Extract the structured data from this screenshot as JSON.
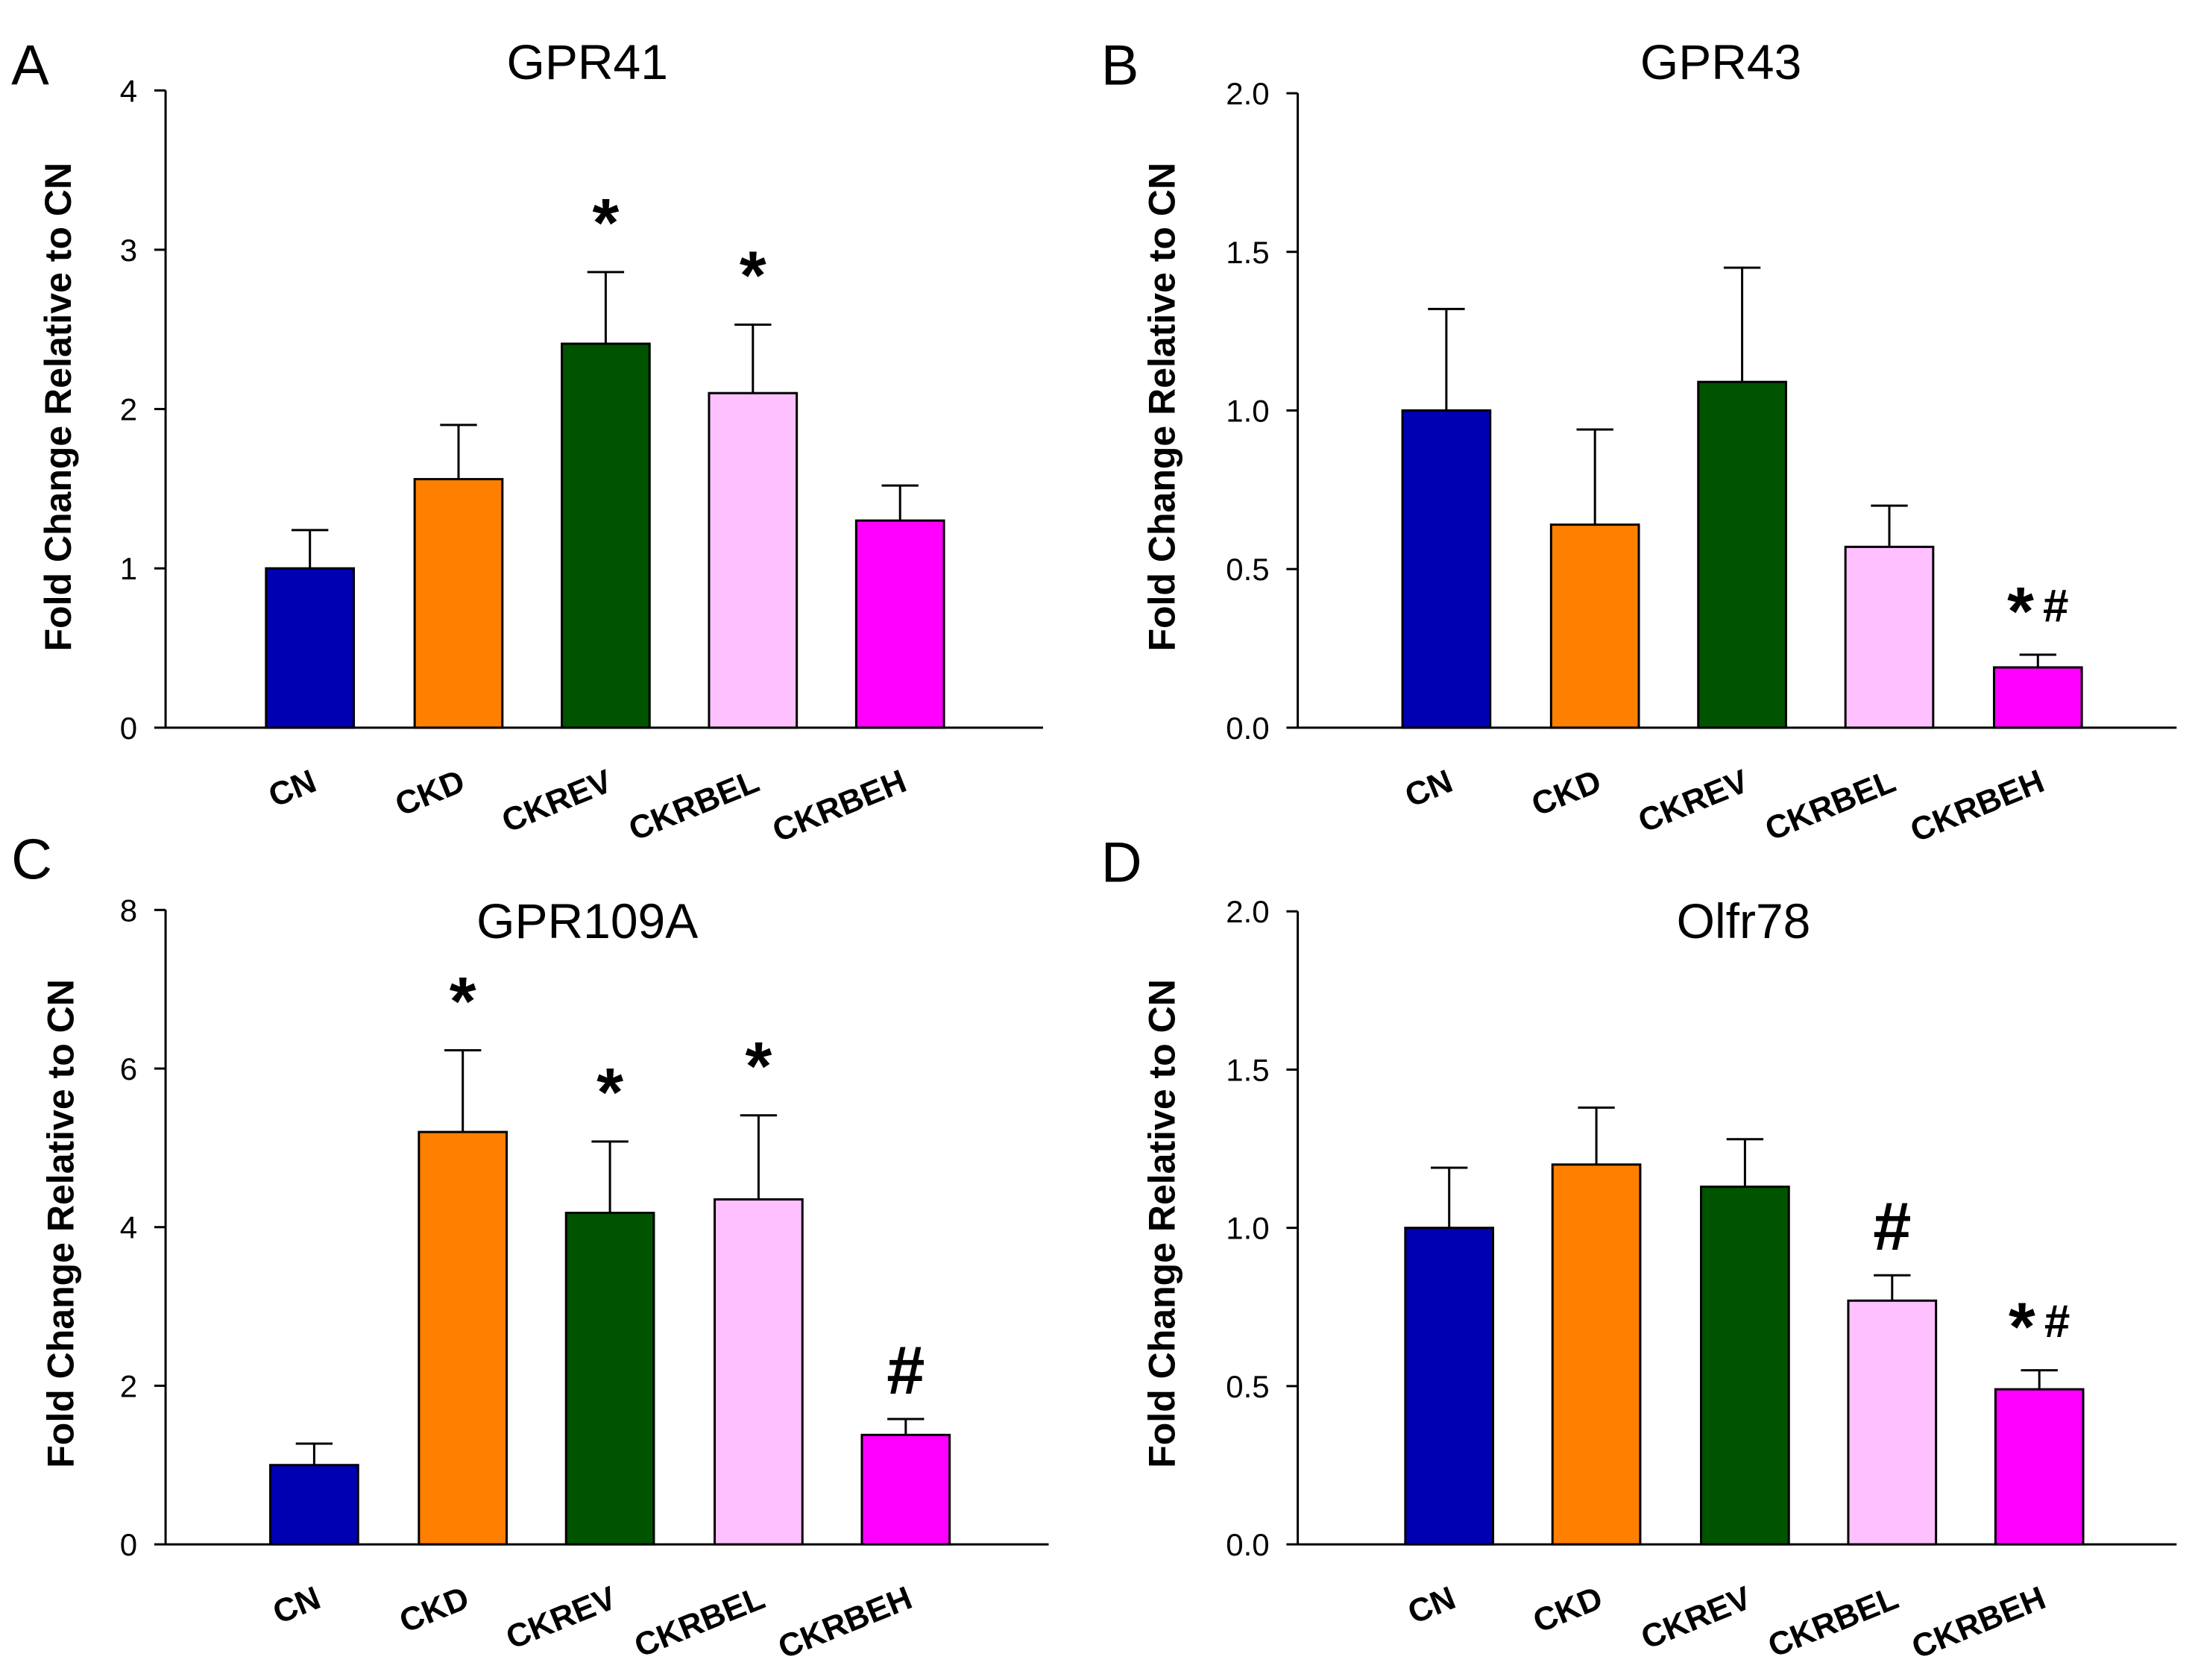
{
  "chart_data": [
    {
      "panel": "A",
      "type": "bar",
      "title": "GPR41",
      "xlabel": "",
      "ylabel": "Fold Change Relative to CN",
      "ylim": [
        0,
        4
      ],
      "yticks": [
        "0",
        "1",
        "2",
        "3",
        "4"
      ],
      "categories": [
        "CN",
        "CKD",
        "CKREV",
        "CKRBEL",
        "CKRBEH"
      ],
      "values": [
        1.0,
        1.56,
        2.41,
        2.1,
        1.3
      ],
      "errors": [
        0.24,
        0.34,
        0.45,
        0.43,
        0.22
      ],
      "significance": [
        "",
        "",
        "*",
        "*",
        ""
      ],
      "colors": [
        "#0000b3",
        "#ff7f00",
        "#005400",
        "#ffc0ff",
        "#ff00ff"
      ]
    },
    {
      "panel": "B",
      "type": "bar",
      "title": "GPR43",
      "xlabel": "",
      "ylabel": "Fold Change Relative to CN",
      "ylim": [
        0,
        2
      ],
      "yticks": [
        "0.0",
        "0.5",
        "1.0",
        "1.5",
        "2.0"
      ],
      "categories": [
        "CN",
        "CKD",
        "CKREV",
        "CKRBEL",
        "CKRBEH"
      ],
      "values": [
        1.0,
        0.64,
        1.09,
        0.57,
        0.19
      ],
      "errors": [
        0.32,
        0.3,
        0.36,
        0.13,
        0.04
      ],
      "significance": [
        "",
        "",
        "",
        "",
        "*#"
      ],
      "colors": [
        "#0000b3",
        "#ff7f00",
        "#005400",
        "#ffc0ff",
        "#ff00ff"
      ]
    },
    {
      "panel": "C",
      "type": "bar",
      "title": "GPR109A",
      "xlabel": "",
      "ylabel": "Fold Change Relative to CN",
      "ylim": [
        0,
        8
      ],
      "yticks": [
        "0",
        "2",
        "4",
        "6",
        "8"
      ],
      "categories": [
        "CN",
        "CKD",
        "CKREV",
        "CKRBEL",
        "CKRBEH"
      ],
      "values": [
        1.0,
        5.2,
        4.18,
        4.35,
        1.38
      ],
      "errors": [
        0.27,
        1.03,
        0.9,
        1.06,
        0.2
      ],
      "significance": [
        "",
        "*",
        "*",
        "*",
        "#"
      ],
      "colors": [
        "#0000b3",
        "#ff7f00",
        "#005400",
        "#ffc0ff",
        "#ff00ff"
      ]
    },
    {
      "panel": "D",
      "type": "bar",
      "title": "Olfr78",
      "xlabel": "",
      "ylabel": "Fold Change Relative to CN",
      "ylim": [
        0,
        2
      ],
      "yticks": [
        "0.0",
        "0.5",
        "1.0",
        "1.5",
        "2.0"
      ],
      "categories": [
        "CN",
        "CKD",
        "CKREV",
        "CKRBEL",
        "CKRBEH"
      ],
      "values": [
        1.0,
        1.2,
        1.13,
        0.77,
        0.49
      ],
      "errors": [
        0.19,
        0.18,
        0.15,
        0.08,
        0.06
      ],
      "significance": [
        "",
        "",
        "",
        "#",
        "*#"
      ],
      "colors": [
        "#0000b3",
        "#ff7f00",
        "#005400",
        "#ffc0ff",
        "#ff00ff"
      ]
    }
  ]
}
